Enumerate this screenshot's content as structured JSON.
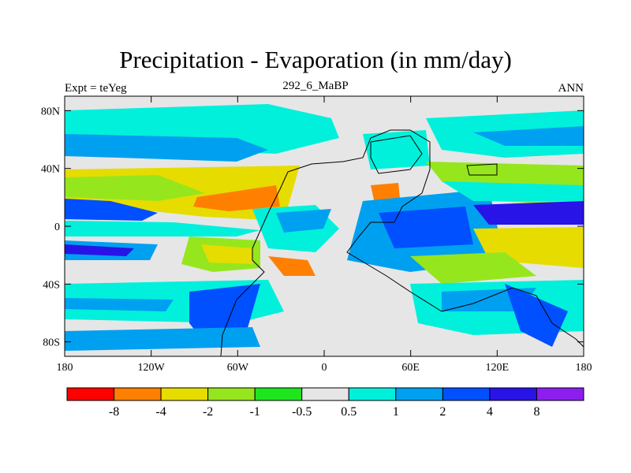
{
  "title": "Precipitation - Evaporation (in mm/day)",
  "subtitle": "292_6_MaBP",
  "left_label": "Expt = teYeg",
  "right_label": "ANN",
  "map": {
    "lon_ticks": [
      "180",
      "120W",
      "60W",
      "0",
      "60E",
      "120E",
      "180"
    ],
    "lat_ticks": [
      "80N",
      "40N",
      "0",
      "40S",
      "80S"
    ],
    "ocean_color": "#e6e6e6",
    "coastline_color": "#000000"
  },
  "colorbar": {
    "colors": [
      "#ff0000",
      "#ff8000",
      "#e6dc00",
      "#96e61e",
      "#1ee61e",
      "#e6e6e6",
      "#00f0dc",
      "#00a0f0",
      "#0050ff",
      "#2814e6",
      "#8c1ef0"
    ],
    "labels": [
      "-8",
      "-4",
      "-2",
      "-1",
      "-0.5",
      "0.5",
      "1",
      "2",
      "4",
      "8"
    ]
  }
}
